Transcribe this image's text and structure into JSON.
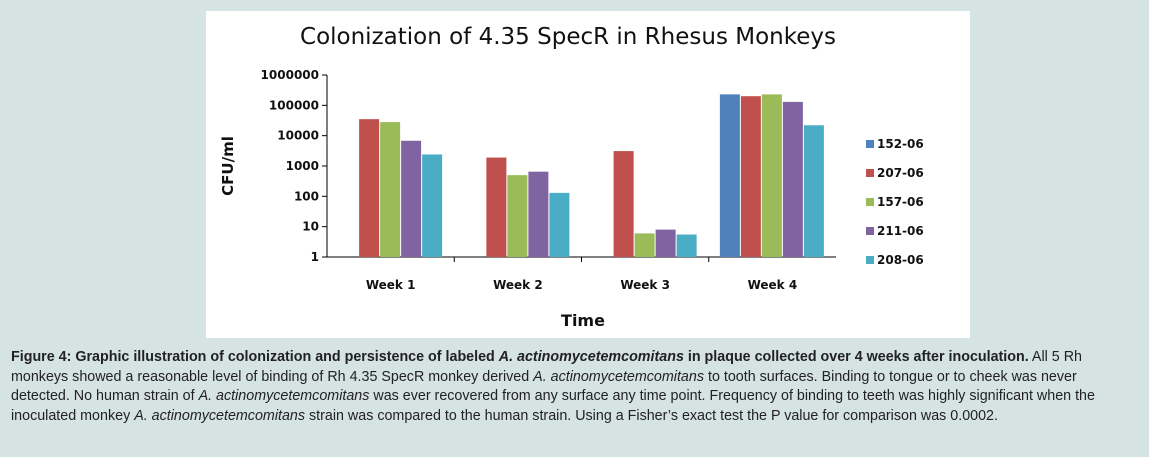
{
  "chart_data": {
    "type": "bar",
    "title": "Colonization of 4.35 SpecR in Rhesus Monkeys",
    "xlabel": "Time",
    "ylabel": "CFU/ml",
    "y_scale": "log",
    "ylim": [
      1,
      1000000
    ],
    "y_ticks": [
      "1",
      "10",
      "100",
      "1000",
      "10000",
      "100000",
      "1000000"
    ],
    "categories": [
      "Week 1",
      "Week 2",
      "Week 3",
      "Week 4"
    ],
    "legend_position": "right",
    "grid": false,
    "series": [
      {
        "name": "152-06",
        "color": "#4f81bd",
        "values": [
          null,
          null,
          null,
          230000
        ]
      },
      {
        "name": "207-06",
        "color": "#c0504d",
        "values": [
          35000,
          1900,
          3100,
          200000
        ]
      },
      {
        "name": "157-06",
        "color": "#9bbb59",
        "values": [
          28000,
          500,
          6,
          230000
        ]
      },
      {
        "name": "211-06",
        "color": "#8064a2",
        "values": [
          6800,
          650,
          8,
          130000
        ]
      },
      {
        "name": "208-06",
        "color": "#4bacc6",
        "values": [
          2400,
          130,
          5.5,
          22000
        ]
      }
    ]
  },
  "caption": {
    "lead_bold_1": "Figure 4: Graphic illustration of colonization and persistence of labeled ",
    "lead_bold_italic": "A. actinomycetemcomitans",
    "lead_bold_2": " in plaque collected over 4 weeks after inoculation.",
    "body_1": " All 5 Rh monkeys showed a reasonable level of binding of Rh 4.35 SpecR monkey derived ",
    "body_italic_1": "A. actinomycetemcomitans",
    "body_2": " to tooth surfaces. Binding to tongue or to cheek was never detected. No human strain of ",
    "body_italic_2": "A. actinomycetemcomitans",
    "body_3": " was ever recovered from any surface any time point. Frequency of binding to teeth was highly significant when the inoculated monkey ",
    "body_italic_3": "A. actinomycetemcomitans",
    "body_4": " strain was compared to the human strain. Using a Fisher’s exact test the P value for comparison was 0.0002."
  }
}
